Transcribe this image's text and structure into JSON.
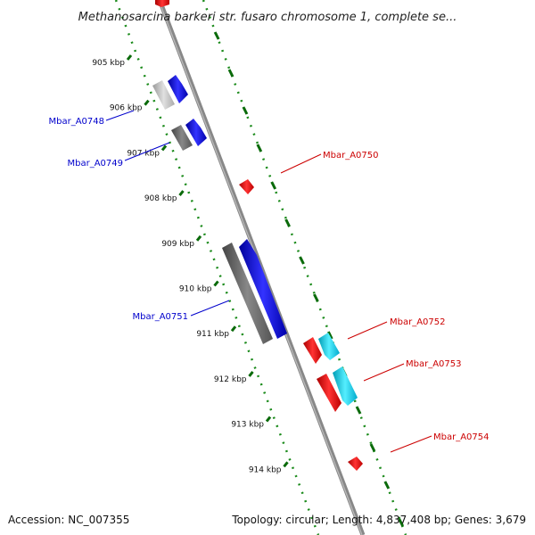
{
  "title": "Methanosarcina barkeri str. fusaro chromosome 1, complete se...",
  "footer": {
    "accession": "Accession: NC_007355",
    "summary": "Topology: circular; Length: 4,837,408 bp; Genes: 3,679"
  },
  "ticks": [
    "905 kbp",
    "906 kbp",
    "907 kbp",
    "908 kbp",
    "909 kbp",
    "910 kbp",
    "911 kbp",
    "912 kbp",
    "913 kbp",
    "914 kbp"
  ],
  "genes_left": [
    {
      "label": "Mbar_A0748",
      "color": "#0000cc"
    },
    {
      "label": "Mbar_A0749",
      "color": "#0000cc"
    },
    {
      "label": "Mbar_A0751",
      "color": "#0000cc"
    }
  ],
  "genes_right": [
    {
      "label": "Mbar_A0750",
      "color": "#cc0000"
    },
    {
      "label": "Mbar_A0752",
      "color": "#cc0000"
    },
    {
      "label": "Mbar_A0753",
      "color": "#cc0000"
    },
    {
      "label": "Mbar_A0754",
      "color": "#cc0000"
    }
  ],
  "colors": {
    "forward_strand": "#0000ff",
    "reverse_strand": "#ff0000",
    "rna": "#00ccee",
    "gc_skew": "#007700",
    "backbone": "#888888"
  }
}
